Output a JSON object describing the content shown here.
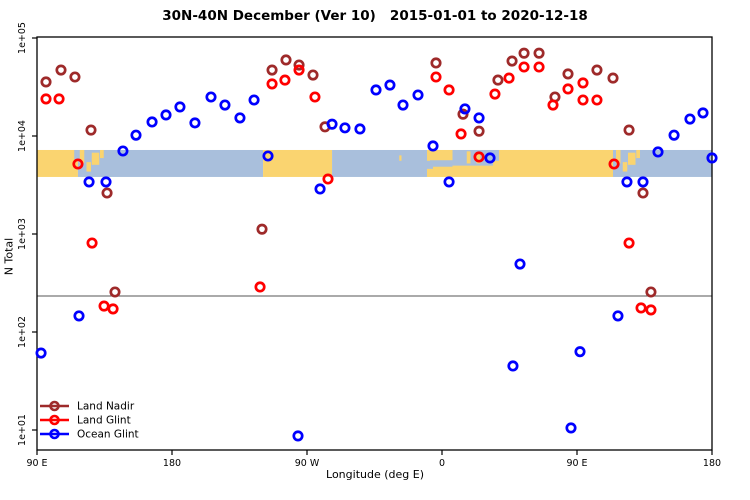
{
  "title": "30N-40N December (Ver 10)   2015-01-01 to 2020-12-18",
  "chart_data": {
    "type": "scatter",
    "xlabel": "Longitude (deg E)",
    "ylabel": "N Total",
    "x_axis": {
      "domain_deg": [
        90,
        540
      ],
      "ticks": [
        {
          "deg": 90,
          "label": "90 E"
        },
        {
          "deg": 180,
          "label": "180"
        },
        {
          "deg": 270,
          "label": "90 W"
        },
        {
          "deg": 360,
          "label": "0"
        },
        {
          "deg": 450,
          "label": "90 E"
        },
        {
          "deg": 540,
          "label": "180"
        }
      ]
    },
    "y_axis": {
      "scale": "log",
      "ticks": [
        {
          "value": 100000,
          "label": "1e+05"
        },
        {
          "value": 10000,
          "label": "1e+04"
        },
        {
          "value": 1000,
          "label": "1e+03"
        },
        {
          "value": 100,
          "label": "1e+02"
        },
        {
          "value": 10,
          "label": "1e+01"
        }
      ]
    },
    "threshold_line": {
      "value": 233,
      "color": "#555555"
    },
    "marker": {
      "radius": 4.2,
      "stroke_width": 2.7
    },
    "series": [
      {
        "name": "Land Nadir",
        "color": "#9E2A2A",
        "points": [
          [
            96,
            35600
          ],
          [
            106,
            47100
          ],
          [
            115.3,
            40000
          ],
          [
            126,
            11500
          ],
          [
            246.7,
            47100
          ],
          [
            256,
            59700
          ],
          [
            264.7,
            53000
          ],
          [
            274,
            41900
          ],
          [
            282,
            12400
          ],
          [
            356,
            55600
          ],
          [
            374,
            16700
          ],
          [
            384.7,
            11200
          ],
          [
            397.3,
            37200
          ],
          [
            406.7,
            58200
          ],
          [
            414.7,
            70000
          ],
          [
            424.7,
            70000
          ],
          [
            435.3,
            25000
          ],
          [
            444,
            43000
          ],
          [
            463.3,
            47100
          ],
          [
            474,
            39000
          ],
          [
            484.7,
            11500
          ],
          [
            136.7,
            2620
          ],
          [
            240,
            1120
          ],
          [
            494,
            2620
          ],
          [
            142,
            256
          ],
          [
            499.3,
            256
          ]
        ]
      },
      {
        "name": "Land Glint",
        "color": "#FF0000",
        "points": [
          [
            96,
            23900
          ],
          [
            104.7,
            23900
          ],
          [
            117.3,
            5180
          ],
          [
            246.7,
            34000
          ],
          [
            255.3,
            37200
          ],
          [
            264.7,
            47100
          ],
          [
            275.3,
            25000
          ],
          [
            284,
            3640
          ],
          [
            356,
            40000
          ],
          [
            364.7,
            29500
          ],
          [
            372.7,
            10500
          ],
          [
            384.7,
            6110
          ],
          [
            395.3,
            26800
          ],
          [
            404.7,
            39000
          ],
          [
            414.7,
            50600
          ],
          [
            424.7,
            50600
          ],
          [
            434,
            20700
          ],
          [
            444,
            30200
          ],
          [
            454,
            34800
          ],
          [
            454,
            23300
          ],
          [
            463.3,
            23300
          ],
          [
            474.7,
            5180
          ],
          [
            484.7,
            809
          ],
          [
            126.7,
            809
          ],
          [
            238.7,
            288
          ],
          [
            134.7,
            184
          ],
          [
            140.7,
            172
          ],
          [
            492.7,
            176
          ],
          [
            499.3,
            168
          ]
        ]
      },
      {
        "name": "Ocean Glint",
        "color": "#0000FF",
        "points": [
          [
            147.3,
            7030
          ],
          [
            156,
            10200
          ],
          [
            166.7,
            13900
          ],
          [
            176,
            16400
          ],
          [
            185.3,
            19800
          ],
          [
            195.3,
            13600
          ],
          [
            206,
            25000
          ],
          [
            215.3,
            20700
          ],
          [
            225.3,
            15300
          ],
          [
            234.7,
            23300
          ],
          [
            244,
            6250
          ],
          [
            124.7,
            3400
          ],
          [
            136,
            3400
          ],
          [
            286.7,
            13200
          ],
          [
            295.3,
            12100
          ],
          [
            305.3,
            11800
          ],
          [
            316,
            29500
          ],
          [
            325.3,
            33100
          ],
          [
            334,
            20700
          ],
          [
            344,
            26200
          ],
          [
            354,
            7910
          ],
          [
            278.7,
            2880
          ],
          [
            375.3,
            18900
          ],
          [
            384.7,
            15300
          ],
          [
            392,
            5970
          ],
          [
            364.7,
            3400
          ],
          [
            412,
            494
          ],
          [
            483.3,
            3400
          ],
          [
            494,
            3400
          ],
          [
            504,
            6870
          ],
          [
            514.7,
            10200
          ],
          [
            525.3,
            14900
          ],
          [
            534,
            17200
          ],
          [
            540,
            5970
          ],
          [
            118,
            146
          ],
          [
            92.7,
            61
          ],
          [
            264,
            8.7
          ],
          [
            477.3,
            146
          ],
          [
            452,
            63
          ],
          [
            407.3,
            45
          ],
          [
            446,
            10.5
          ]
        ]
      }
    ],
    "map_band": {
      "n_top": 7200,
      "n_bottom": 3820,
      "land_color": "#FAD470",
      "ocean_color": "#A9BFDC",
      "base_runs": [
        {
          "from": 90,
          "to": 117.3,
          "type": "land"
        },
        {
          "from": 117.3,
          "to": 240.7,
          "type": "ocean"
        },
        {
          "from": 240.7,
          "to": 286.7,
          "type": "land"
        },
        {
          "from": 286.7,
          "to": 350,
          "type": "ocean"
        },
        {
          "from": 350,
          "to": 474,
          "type": "land"
        },
        {
          "from": 474,
          "to": 540,
          "type": "ocean"
        }
      ],
      "ocean_patches": [
        {
          "from": 114.8,
          "to": 117.3,
          "fy0": 0,
          "fy1": 0.35
        },
        {
          "from": 350,
          "to": 354,
          "fy0": 0.4,
          "fy1": 0.7
        },
        {
          "from": 352,
          "to": 367,
          "fy0": 0.38,
          "fy1": 0.62
        },
        {
          "from": 367,
          "to": 394,
          "fy0": 0,
          "fy1": 0.58
        },
        {
          "from": 394,
          "to": 398,
          "fy0": 0,
          "fy1": 0.4
        }
      ],
      "land_patches": [
        {
          "from": 118.5,
          "to": 121.5,
          "fy0": 0,
          "fy1": 0.5
        },
        {
          "from": 123,
          "to": 126,
          "fy0": 0.45,
          "fy1": 0.8
        },
        {
          "from": 126.5,
          "to": 131.5,
          "fy0": 0.1,
          "fy1": 0.55
        },
        {
          "from": 132,
          "to": 134.5,
          "fy0": 0,
          "fy1": 0.3
        },
        {
          "from": 476,
          "to": 479,
          "fy0": 0,
          "fy1": 0.5
        },
        {
          "from": 480.5,
          "to": 483.5,
          "fy0": 0.45,
          "fy1": 0.8
        },
        {
          "from": 484,
          "to": 489,
          "fy0": 0.1,
          "fy1": 0.55
        },
        {
          "from": 489.5,
          "to": 492,
          "fy0": 0,
          "fy1": 0.3
        },
        {
          "from": 331.5,
          "to": 333,
          "fy0": 0.2,
          "fy1": 0.4
        },
        {
          "from": 376.5,
          "to": 379,
          "fy0": 0.05,
          "fy1": 0.5
        },
        {
          "from": 383,
          "to": 385.5,
          "fy0": 0.1,
          "fy1": 0.5
        }
      ]
    },
    "legend": {
      "items": [
        {
          "label": "Land Nadir",
          "color": "#9E2A2A"
        },
        {
          "label": "Land Glint",
          "color": "#FF0000"
        },
        {
          "label": "Ocean Glint",
          "color": "#0000FF"
        }
      ]
    }
  }
}
